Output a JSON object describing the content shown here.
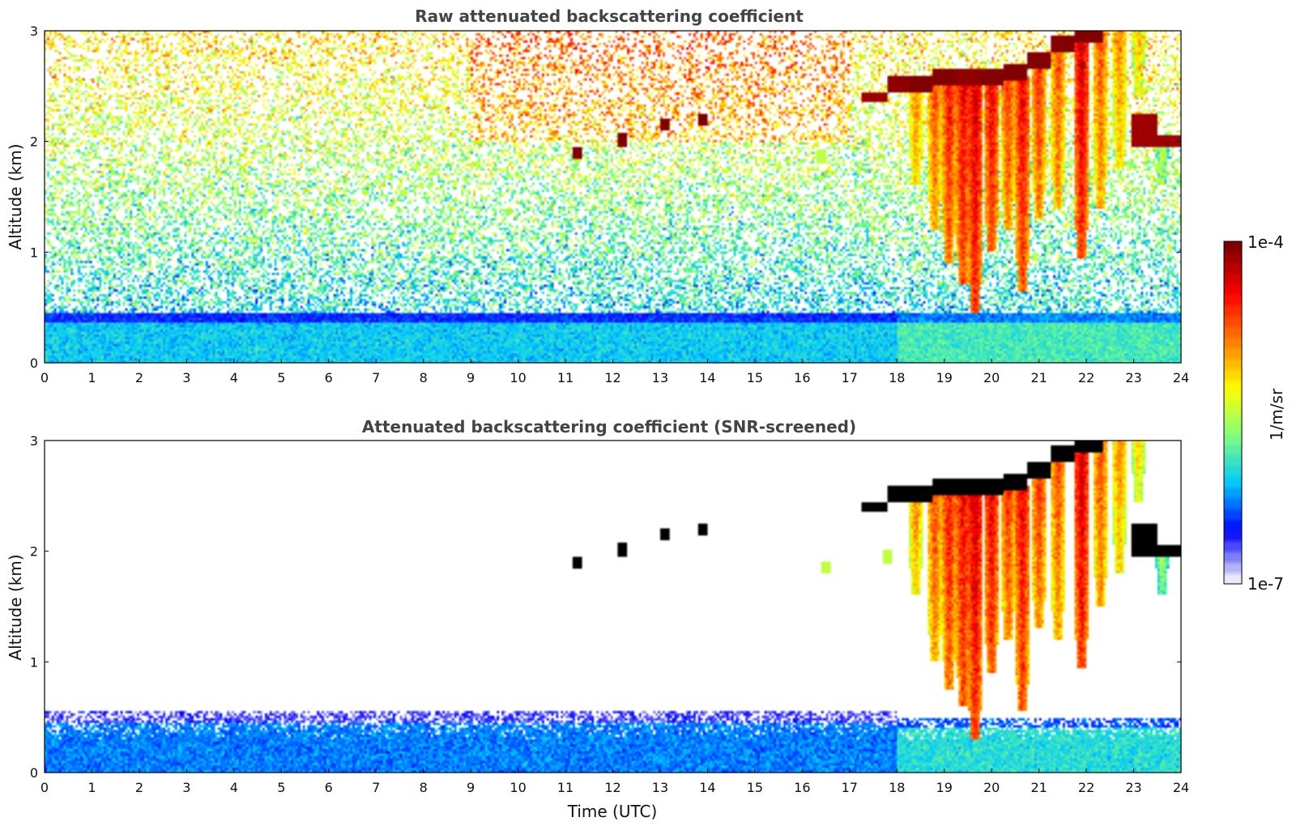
{
  "chart_data": [
    {
      "type": "heatmap",
      "title": "Raw attenuated backscattering coefficient",
      "xlabel": "",
      "ylabel": "Altitude (km)",
      "xlim": [
        0,
        24
      ],
      "ylim": [
        0,
        3
      ],
      "x_ticks": [
        "0",
        "1",
        "2",
        "3",
        "4",
        "5",
        "6",
        "7",
        "8",
        "9",
        "10",
        "11",
        "12",
        "13",
        "14",
        "15",
        "16",
        "17",
        "18",
        "19",
        "20",
        "21",
        "22",
        "23",
        "24"
      ],
      "y_ticks": [
        "0",
        "1",
        "2",
        "3"
      ],
      "screened": false,
      "boundary_layer": [
        {
          "x_start": 0,
          "x_end": 18,
          "top_km": 0.45,
          "value_log10": -6.1
        },
        {
          "x_start": 18,
          "x_end": 24,
          "top_km": 0.45,
          "value_log10": -5.9
        }
      ],
      "cloud_layer": [
        {
          "x": 17.6,
          "base_km": 2.35,
          "top_km": 2.45,
          "value_log10": -4.1
        },
        {
          "x": 18.0,
          "base_km": 2.45,
          "top_km": 2.6,
          "value_log10": -4.05
        },
        {
          "x": 18.5,
          "base_km": 2.45,
          "top_km": 2.6,
          "value_log10": -4.0
        },
        {
          "x": 19.0,
          "base_km": 2.5,
          "top_km": 2.65,
          "value_log10": -4.0
        },
        {
          "x": 19.5,
          "base_km": 2.5,
          "top_km": 2.65,
          "value_log10": -4.05
        },
        {
          "x": 20.0,
          "base_km": 2.5,
          "top_km": 2.65,
          "value_log10": -4.0
        },
        {
          "x": 20.5,
          "base_km": 2.55,
          "top_km": 2.7,
          "value_log10": -4.0
        },
        {
          "x": 21.0,
          "base_km": 2.65,
          "top_km": 2.8,
          "value_log10": -4.0
        },
        {
          "x": 21.5,
          "base_km": 2.8,
          "top_km": 2.95,
          "value_log10": -4.0
        },
        {
          "x": 22.0,
          "base_km": 2.9,
          "top_km": 3.0,
          "value_log10": -4.0
        },
        {
          "x": 23.3,
          "base_km": 1.95,
          "top_km": 2.25,
          "value_log10": -4.1
        },
        {
          "x": 23.7,
          "base_km": 1.95,
          "top_km": 2.05,
          "value_log10": -4.1
        }
      ],
      "fall_streaks": [
        {
          "x": 18.4,
          "base_km": 1.6,
          "top_km": 2.45,
          "value_log10": -5.0
        },
        {
          "x": 18.8,
          "base_km": 1.2,
          "top_km": 2.5,
          "value_log10": -4.8
        },
        {
          "x": 19.1,
          "base_km": 0.9,
          "top_km": 2.5,
          "value_log10": -4.6
        },
        {
          "x": 19.4,
          "base_km": 0.7,
          "top_km": 2.5,
          "value_log10": -4.5
        },
        {
          "x": 19.65,
          "base_km": 0.45,
          "top_km": 2.5,
          "value_log10": -4.4
        },
        {
          "x": 20.0,
          "base_km": 1.0,
          "top_km": 2.55,
          "value_log10": -4.5
        },
        {
          "x": 20.35,
          "base_km": 1.2,
          "top_km": 2.55,
          "value_log10": -4.7
        },
        {
          "x": 20.65,
          "base_km": 0.65,
          "top_km": 2.6,
          "value_log10": -4.5
        },
        {
          "x": 21.0,
          "base_km": 1.3,
          "top_km": 2.7,
          "value_log10": -4.7
        },
        {
          "x": 21.4,
          "base_km": 1.4,
          "top_km": 2.8,
          "value_log10": -4.8
        },
        {
          "x": 21.9,
          "base_km": 0.95,
          "top_km": 2.9,
          "value_log10": -4.4
        },
        {
          "x": 22.3,
          "base_km": 1.4,
          "top_km": 3.0,
          "value_log10": -4.8
        },
        {
          "x": 22.7,
          "base_km": 1.75,
          "top_km": 3.0,
          "value_log10": -5.0
        },
        {
          "x": 23.1,
          "base_km": 2.4,
          "top_km": 3.0,
          "value_log10": -5.2
        },
        {
          "x": 23.6,
          "base_km": 1.6,
          "top_km": 2.05,
          "value_log10": -5.6
        }
      ],
      "small_clouds": [
        {
          "x": 11.25,
          "y_km": 1.9,
          "value_log10": -4.0
        },
        {
          "x": 12.2,
          "y_km": 2.02,
          "value_log10": -4.0
        },
        {
          "x": 13.1,
          "y_km": 2.15,
          "value_log10": -4.0
        },
        {
          "x": 13.9,
          "y_km": 2.2,
          "value_log10": -4.0
        },
        {
          "x": 16.4,
          "y_km": 1.85,
          "value_log10": -5.5
        }
      ]
    },
    {
      "type": "heatmap",
      "title": "Attenuated backscattering coefficient (SNR-screened)",
      "xlabel": "Time (UTC)",
      "ylabel": "Altitude (km)",
      "xlim": [
        0,
        24
      ],
      "ylim": [
        0,
        3
      ],
      "x_ticks": [
        "0",
        "1",
        "2",
        "3",
        "4",
        "5",
        "6",
        "7",
        "8",
        "9",
        "10",
        "11",
        "12",
        "13",
        "14",
        "15",
        "16",
        "17",
        "18",
        "19",
        "20",
        "21",
        "22",
        "23",
        "24"
      ],
      "y_ticks": [
        "0",
        "1",
        "2",
        "3"
      ],
      "screened": true,
      "boundary_layer": [
        {
          "x_start": 0,
          "x_end": 18,
          "top_km": 0.55,
          "value_log10": -6.3
        },
        {
          "x_start": 18,
          "x_end": 24,
          "top_km": 0.5,
          "value_log10": -6.0
        }
      ],
      "cloud_layer": [
        {
          "x": 17.6,
          "base_km": 2.35,
          "top_km": 2.45,
          "value_log10": -3.5
        },
        {
          "x": 18.0,
          "base_km": 2.45,
          "top_km": 2.6,
          "value_log10": -3.5
        },
        {
          "x": 18.5,
          "base_km": 2.45,
          "top_km": 2.6,
          "value_log10": -3.5
        },
        {
          "x": 19.0,
          "base_km": 2.5,
          "top_km": 2.65,
          "value_log10": -3.5
        },
        {
          "x": 19.5,
          "base_km": 2.5,
          "top_km": 2.65,
          "value_log10": -3.5
        },
        {
          "x": 20.0,
          "base_km": 2.5,
          "top_km": 2.65,
          "value_log10": -3.5
        },
        {
          "x": 20.5,
          "base_km": 2.55,
          "top_km": 2.7,
          "value_log10": -3.5
        },
        {
          "x": 21.0,
          "base_km": 2.65,
          "top_km": 2.8,
          "value_log10": -3.5
        },
        {
          "x": 21.5,
          "base_km": 2.8,
          "top_km": 2.95,
          "value_log10": -3.5
        },
        {
          "x": 22.0,
          "base_km": 2.9,
          "top_km": 3.0,
          "value_log10": -3.5
        },
        {
          "x": 23.3,
          "base_km": 1.95,
          "top_km": 2.25,
          "value_log10": -3.5
        },
        {
          "x": 23.7,
          "base_km": 1.95,
          "top_km": 2.05,
          "value_log10": -3.5
        }
      ],
      "fall_streaks": [
        {
          "x": 18.4,
          "base_km": 1.6,
          "top_km": 2.45,
          "value_log10": -5.0
        },
        {
          "x": 18.8,
          "base_km": 1.0,
          "top_km": 2.5,
          "value_log10": -4.8
        },
        {
          "x": 19.1,
          "base_km": 0.75,
          "top_km": 2.5,
          "value_log10": -4.6
        },
        {
          "x": 19.4,
          "base_km": 0.6,
          "top_km": 2.5,
          "value_log10": -4.5
        },
        {
          "x": 19.65,
          "base_km": 0.3,
          "top_km": 2.5,
          "value_log10": -4.4
        },
        {
          "x": 20.0,
          "base_km": 0.9,
          "top_km": 2.55,
          "value_log10": -4.5
        },
        {
          "x": 20.35,
          "base_km": 1.2,
          "top_km": 2.55,
          "value_log10": -4.7
        },
        {
          "x": 20.65,
          "base_km": 0.55,
          "top_km": 2.6,
          "value_log10": -4.5
        },
        {
          "x": 21.0,
          "base_km": 1.3,
          "top_km": 2.7,
          "value_log10": -4.7
        },
        {
          "x": 21.4,
          "base_km": 1.2,
          "top_km": 2.8,
          "value_log10": -4.8
        },
        {
          "x": 21.9,
          "base_km": 0.95,
          "top_km": 2.9,
          "value_log10": -4.4
        },
        {
          "x": 22.3,
          "base_km": 1.5,
          "top_km": 3.0,
          "value_log10": -4.8
        },
        {
          "x": 22.7,
          "base_km": 1.8,
          "top_km": 3.0,
          "value_log10": -5.0
        },
        {
          "x": 23.1,
          "base_km": 2.45,
          "top_km": 3.0,
          "value_log10": -5.2
        },
        {
          "x": 23.6,
          "base_km": 1.6,
          "top_km": 2.05,
          "value_log10": -5.6
        }
      ],
      "small_clouds": [
        {
          "x": 11.25,
          "y_km": 1.9,
          "value_log10": -3.5
        },
        {
          "x": 12.2,
          "y_km": 2.02,
          "value_log10": -3.5
        },
        {
          "x": 13.1,
          "y_km": 2.15,
          "value_log10": -3.5
        },
        {
          "x": 13.9,
          "y_km": 2.2,
          "value_log10": -3.5
        },
        {
          "x": 16.5,
          "y_km": 1.85,
          "value_log10": -5.5
        },
        {
          "x": 17.8,
          "y_km": 1.95,
          "value_log10": -5.5
        }
      ]
    }
  ],
  "colorbar": {
    "label": "1/m/sr",
    "min_label": "1e-7",
    "max_label": "1e-4",
    "min_log10": -7,
    "max_log10": -4,
    "colormap": "jet",
    "colors": [
      "#e8e8f8",
      "#0000ff",
      "#00c8ff",
      "#7fff7f",
      "#ffff00",
      "#ff7f00",
      "#ff0000",
      "#800000"
    ]
  }
}
